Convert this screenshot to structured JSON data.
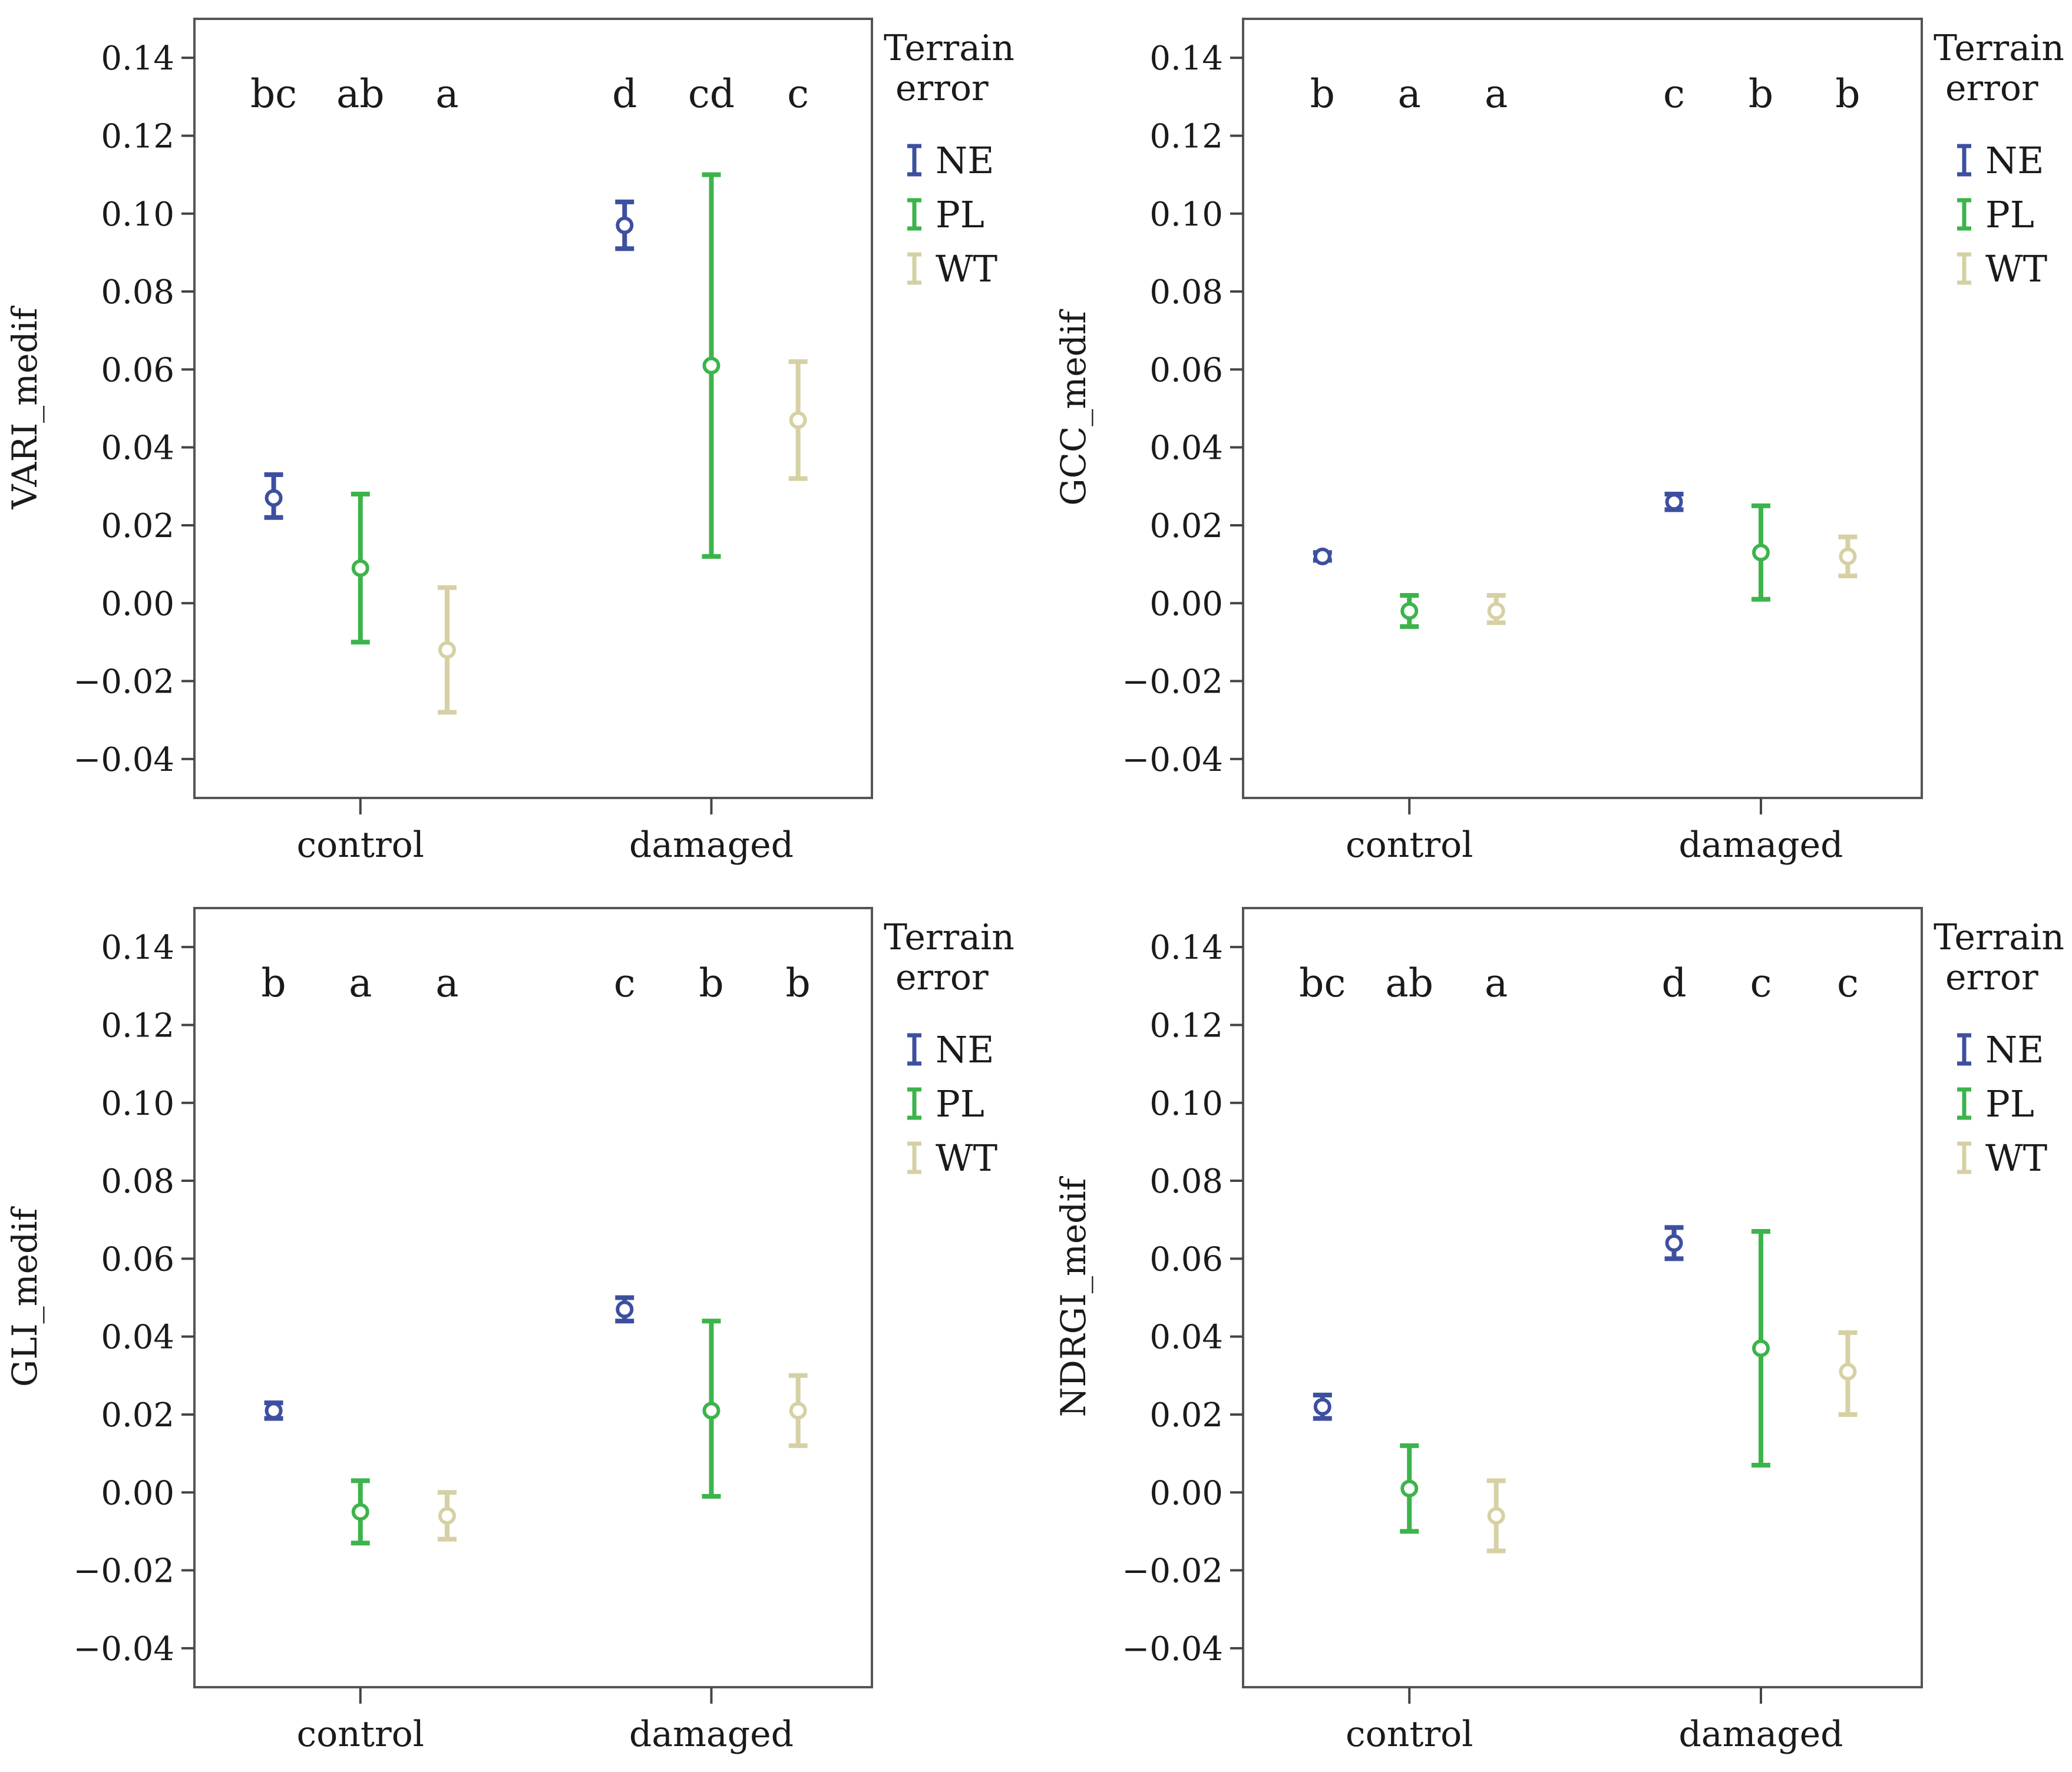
{
  "legend": {
    "title_line1": "Terrain",
    "title_line2": "error",
    "entries": [
      {
        "name": "NE",
        "color": "#3d4f9f"
      },
      {
        "name": "PL",
        "color": "#3cb44b"
      },
      {
        "name": "WT",
        "color": "#d6d1a4"
      }
    ]
  },
  "chart_data": [
    {
      "type": "errorbar",
      "ylabel": "VARI_medif",
      "ylim": [
        -0.05,
        0.15
      ],
      "yticks": [
        -0.04,
        -0.02,
        0.0,
        0.02,
        0.04,
        0.06,
        0.08,
        0.1,
        0.12,
        0.14
      ],
      "ytick_labels": [
        "−0.04",
        "−0.02",
        "0.00",
        "0.02",
        "0.04",
        "0.06",
        "0.08",
        "0.10",
        "0.12",
        "0.14"
      ],
      "categories": [
        "control",
        "damaged"
      ],
      "series": [
        {
          "name": "NE",
          "mean": [
            0.027,
            0.097
          ],
          "lower": [
            0.022,
            0.091
          ],
          "upper": [
            0.033,
            0.103
          ],
          "letters": [
            "bc",
            "d"
          ]
        },
        {
          "name": "PL",
          "mean": [
            0.009,
            0.061
          ],
          "lower": [
            -0.01,
            0.012
          ],
          "upper": [
            0.028,
            0.11
          ],
          "letters": [
            "ab",
            "cd"
          ]
        },
        {
          "name": "WT",
          "mean": [
            -0.012,
            0.047
          ],
          "lower": [
            -0.028,
            0.032
          ],
          "upper": [
            0.004,
            0.062
          ],
          "letters": [
            "a",
            "c"
          ]
        }
      ]
    },
    {
      "type": "errorbar",
      "ylabel": "GCC_medif",
      "ylim": [
        -0.05,
        0.15
      ],
      "yticks": [
        -0.04,
        -0.02,
        0.0,
        0.02,
        0.04,
        0.06,
        0.08,
        0.1,
        0.12,
        0.14
      ],
      "ytick_labels": [
        "−0.04",
        "−0.02",
        "0.00",
        "0.02",
        "0.04",
        "0.06",
        "0.08",
        "0.10",
        "0.12",
        "0.14"
      ],
      "categories": [
        "control",
        "damaged"
      ],
      "series": [
        {
          "name": "NE",
          "mean": [
            0.012,
            0.026
          ],
          "lower": [
            0.011,
            0.024
          ],
          "upper": [
            0.013,
            0.028
          ],
          "letters": [
            "b",
            "c"
          ]
        },
        {
          "name": "PL",
          "mean": [
            -0.002,
            0.013
          ],
          "lower": [
            -0.006,
            0.001
          ],
          "upper": [
            0.002,
            0.025
          ],
          "letters": [
            "a",
            "b"
          ]
        },
        {
          "name": "WT",
          "mean": [
            -0.002,
            0.012
          ],
          "lower": [
            -0.005,
            0.007
          ],
          "upper": [
            0.002,
            0.017
          ],
          "letters": [
            "a",
            "b"
          ]
        }
      ]
    },
    {
      "type": "errorbar",
      "ylabel": "GLI_medif",
      "ylim": [
        -0.05,
        0.15
      ],
      "yticks": [
        -0.04,
        -0.02,
        0.0,
        0.02,
        0.04,
        0.06,
        0.08,
        0.1,
        0.12,
        0.14
      ],
      "ytick_labels": [
        "−0.04",
        "−0.02",
        "0.00",
        "0.02",
        "0.04",
        "0.06",
        "0.08",
        "0.10",
        "0.12",
        "0.14"
      ],
      "categories": [
        "control",
        "damaged"
      ],
      "series": [
        {
          "name": "NE",
          "mean": [
            0.021,
            0.047
          ],
          "lower": [
            0.019,
            0.044
          ],
          "upper": [
            0.023,
            0.05
          ],
          "letters": [
            "b",
            "c"
          ]
        },
        {
          "name": "PL",
          "mean": [
            -0.005,
            0.021
          ],
          "lower": [
            -0.013,
            -0.001
          ],
          "upper": [
            0.003,
            0.044
          ],
          "letters": [
            "a",
            "b"
          ]
        },
        {
          "name": "WT",
          "mean": [
            -0.006,
            0.021
          ],
          "lower": [
            -0.012,
            0.012
          ],
          "upper": [
            0.0,
            0.03
          ],
          "letters": [
            "a",
            "b"
          ]
        }
      ]
    },
    {
      "type": "errorbar",
      "ylabel": "NDRGI_medif",
      "ylim": [
        -0.05,
        0.15
      ],
      "yticks": [
        -0.04,
        -0.02,
        0.0,
        0.02,
        0.04,
        0.06,
        0.08,
        0.1,
        0.12,
        0.14
      ],
      "ytick_labels": [
        "−0.04",
        "−0.02",
        "0.00",
        "0.02",
        "0.04",
        "0.06",
        "0.08",
        "0.10",
        "0.12",
        "0.14"
      ],
      "categories": [
        "control",
        "damaged"
      ],
      "series": [
        {
          "name": "NE",
          "mean": [
            0.022,
            0.064
          ],
          "lower": [
            0.019,
            0.06
          ],
          "upper": [
            0.025,
            0.068
          ],
          "letters": [
            "bc",
            "d"
          ]
        },
        {
          "name": "PL",
          "mean": [
            0.001,
            0.037
          ],
          "lower": [
            -0.01,
            0.007
          ],
          "upper": [
            0.012,
            0.067
          ],
          "letters": [
            "ab",
            "c"
          ]
        },
        {
          "name": "WT",
          "mean": [
            -0.006,
            0.031
          ],
          "lower": [
            -0.015,
            0.02
          ],
          "upper": [
            0.003,
            0.041
          ],
          "letters": [
            "a",
            "c"
          ]
        }
      ]
    }
  ]
}
